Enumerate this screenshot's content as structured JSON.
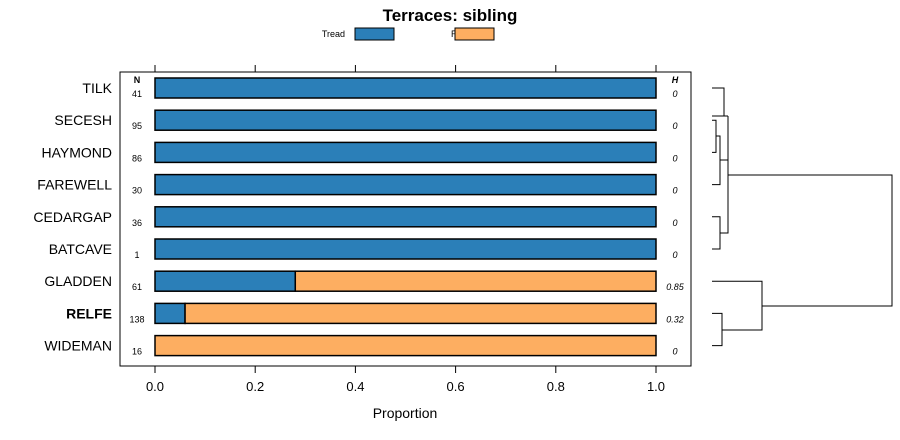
{
  "chart_data": {
    "type": "bar",
    "subtype": "stacked-horizontal-proportion",
    "title": "Terraces: sibling",
    "xlabel": "Proportion",
    "xlim": [
      0,
      1
    ],
    "xticks": [
      0.0,
      0.2,
      0.4,
      0.6,
      0.8,
      1.0
    ],
    "xtick_labels": [
      "0.0",
      "0.2",
      "0.4",
      "0.6",
      "0.8",
      "1.0"
    ],
    "n_header": "N",
    "h_header": "H",
    "legend": [
      {
        "name": "Tread",
        "color": "#2b7fb8"
      },
      {
        "name": "Riser",
        "color": "#fdae61"
      }
    ],
    "categories": [
      "TILK",
      "SECESH",
      "HAYMOND",
      "FAREWELL",
      "CEDARGAP",
      "BATCAVE",
      "GLADDEN",
      "RELFE",
      "WIDEMAN"
    ],
    "highlighted": "RELFE",
    "n": [
      "41",
      "95",
      "86",
      "30",
      "36",
      "1",
      "61",
      "138",
      "16"
    ],
    "h": [
      "0",
      "0",
      "0",
      "0",
      "0",
      "0",
      "0.85",
      "0.32",
      "0"
    ],
    "series": [
      {
        "name": "Tread",
        "values": [
          1,
          1,
          1,
          1,
          1,
          1,
          0.28,
          0.06,
          0
        ]
      },
      {
        "name": "Riser",
        "values": [
          0,
          0,
          0,
          0,
          0,
          0,
          0.72,
          0.94,
          1
        ]
      }
    ],
    "dendrogram": "hierarchical clustering of rows (right side)"
  }
}
